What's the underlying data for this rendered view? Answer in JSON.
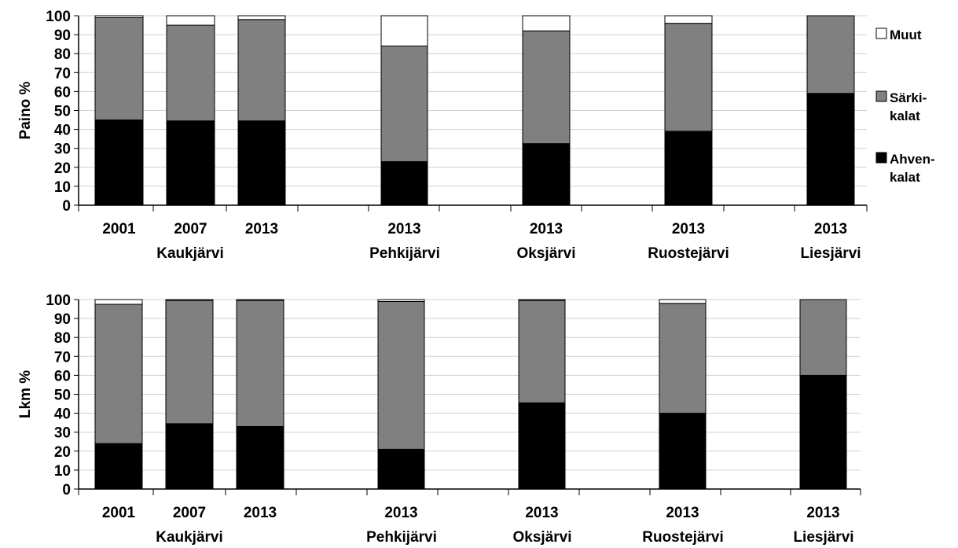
{
  "chart_data": [
    {
      "type": "bar",
      "stacked": true,
      "ylabel": "Paino %",
      "ylim": [
        0,
        100
      ],
      "yticks": [
        0,
        10,
        20,
        30,
        40,
        50,
        60,
        70,
        80,
        90,
        100
      ],
      "grid": true,
      "categories": [
        "2001",
        "2007",
        "2013",
        "2013",
        "2013",
        "2013",
        "2013"
      ],
      "groups": [
        "Kaukjärvi",
        "Pehkijärvi",
        "Oksjärvi",
        "Ruostejärvi",
        "Liesjärvi"
      ],
      "series": [
        {
          "name": "Ahvenkalat",
          "color": "#000000",
          "values": [
            45,
            44.5,
            44.5,
            23,
            32.5,
            39,
            59
          ]
        },
        {
          "name": "Särkikalat",
          "color": "#808080",
          "values": [
            54,
            50.5,
            53.5,
            61,
            59.5,
            57,
            41
          ]
        },
        {
          "name": "Muut",
          "color": "#ffffff",
          "values": [
            1,
            5,
            2,
            16,
            8,
            4,
            0
          ]
        }
      ]
    },
    {
      "type": "bar",
      "stacked": true,
      "ylabel": "Lkm %",
      "ylim": [
        0,
        100
      ],
      "yticks": [
        0,
        10,
        20,
        30,
        40,
        50,
        60,
        70,
        80,
        90,
        100
      ],
      "grid": true,
      "categories": [
        "2001",
        "2007",
        "2013",
        "2013",
        "2013",
        "2013",
        "2013"
      ],
      "groups": [
        "Kaukjärvi",
        "Pehkijärvi",
        "Oksjärvi",
        "Ruostejärvi",
        "Liesjärvi"
      ],
      "series": [
        {
          "name": "Ahvenkalat",
          "color": "#000000",
          "values": [
            24,
            34.5,
            33,
            21,
            45.5,
            40,
            60
          ]
        },
        {
          "name": "Särkikalat",
          "color": "#808080",
          "values": [
            73.5,
            65,
            66.5,
            78,
            54,
            58,
            40
          ]
        },
        {
          "name": "Muut",
          "color": "#ffffff",
          "values": [
            2.5,
            0.5,
            0.5,
            1,
            0.5,
            2,
            0
          ]
        }
      ]
    }
  ],
  "legend": {
    "placement": "right",
    "items": [
      {
        "lines": [
          "Muut"
        ],
        "color": "#ffffff"
      },
      {
        "lines": [
          "Särki-",
          "kalat"
        ],
        "color": "#808080"
      },
      {
        "lines": [
          "Ahven-",
          "kalat"
        ],
        "color": "#000000"
      }
    ]
  }
}
